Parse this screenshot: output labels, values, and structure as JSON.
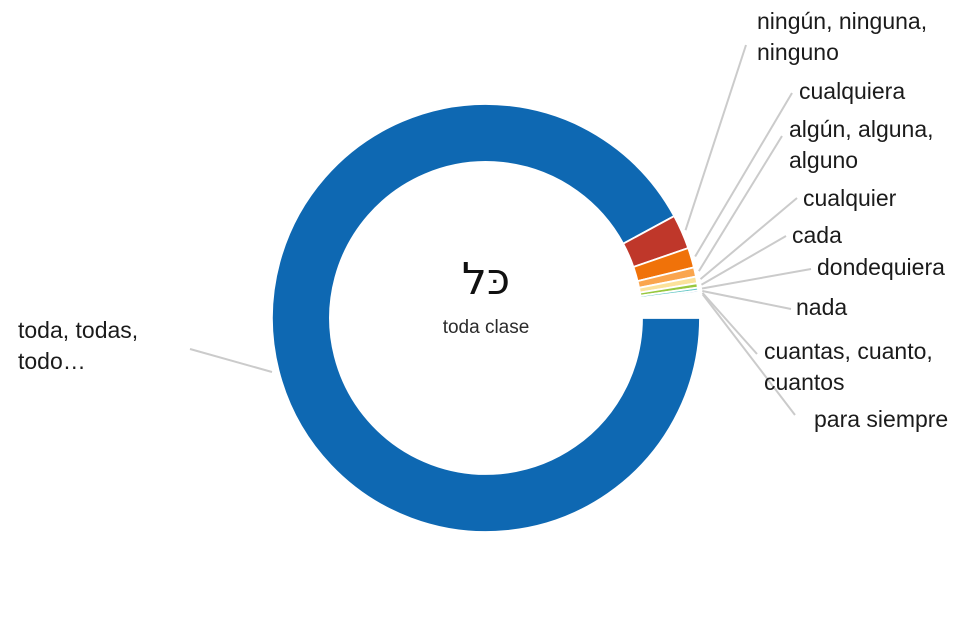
{
  "chart_data": {
    "type": "pie",
    "subtype": "donut",
    "title": "",
    "center_title": "כּל",
    "center_subtitle": "toda clase",
    "rotation_deg": 90,
    "legend_position": "outside-callout-labels",
    "background_color": "#FFFFFF",
    "leader_line_color": "#CBCBCB",
    "label_text_color": "#1B1B1B",
    "segments": [
      {
        "label": "toda, todas,\ntodo…",
        "value": 92.1,
        "color": "#0E68B2"
      },
      {
        "label": "ningún, ninguna,\nninguno",
        "value": 2.6,
        "color": "#BF372A"
      },
      {
        "label": "cualquiera",
        "value": 1.5,
        "color": "#F07209"
      },
      {
        "label": "algún, alguna,\nalguno",
        "value": 0.7,
        "color": "#FAA54D"
      },
      {
        "label": "cualquier",
        "value": 0.5,
        "color": "#FBE29B"
      },
      {
        "label": "cada",
        "value": 0.33,
        "color": "#97C83F"
      },
      {
        "label": "dondequiera",
        "value": 0.22,
        "color": "#63C6C4"
      },
      {
        "label": "nada",
        "value": 0.15,
        "color": "#85B6E0"
      },
      {
        "label": "cuantas, cuanto,\ncuantos",
        "value": 0.12,
        "color": "#BFD9EE"
      },
      {
        "label": "para siempre",
        "value": 0.1,
        "color": "#E3EEF7"
      }
    ]
  }
}
